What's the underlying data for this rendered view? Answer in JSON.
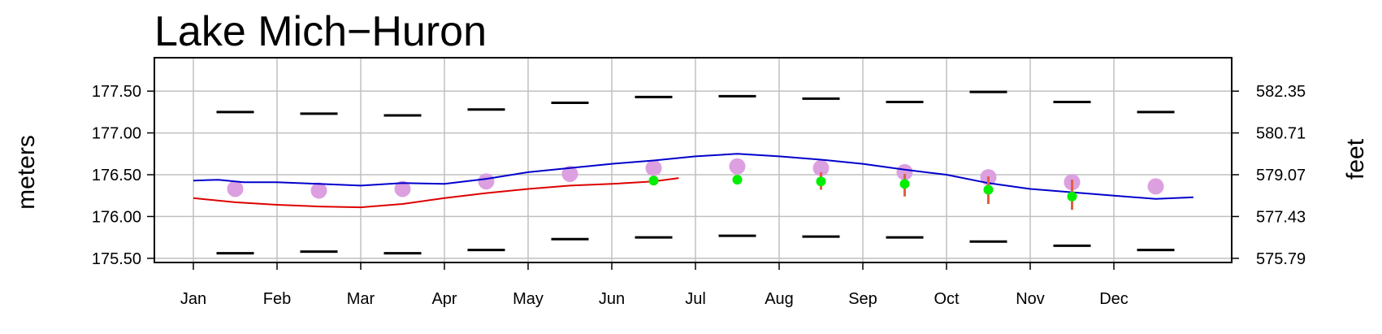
{
  "chart_data": {
    "type": "line",
    "title": "Lake Mich−Huron",
    "ylabel_left": "meters",
    "ylabel_right": "feet",
    "categories": [
      "Jan",
      "Feb",
      "Mar",
      "Apr",
      "May",
      "Jun",
      "Jul",
      "Aug",
      "Sep",
      "Oct",
      "Nov",
      "Dec"
    ],
    "ylim": [
      175.45,
      177.9
    ],
    "yticks_left": [
      {
        "value": 175.5,
        "label": "175.50"
      },
      {
        "value": 176.0,
        "label": "176.00"
      },
      {
        "value": 176.5,
        "label": "176.50"
      },
      {
        "value": 177.0,
        "label": "177.00"
      },
      {
        "value": 177.5,
        "label": "177.50"
      }
    ],
    "yticks_right": [
      {
        "value": 175.5,
        "label": "575.79"
      },
      {
        "value": 176.0,
        "label": "577.43"
      },
      {
        "value": 176.5,
        "label": "579.07"
      },
      {
        "value": 177.0,
        "label": "580.71"
      },
      {
        "value": 177.5,
        "label": "582.35"
      }
    ],
    "grid": true,
    "monthly_max": [
      177.25,
      177.23,
      177.21,
      177.28,
      177.36,
      177.43,
      177.44,
      177.41,
      177.37,
      177.49,
      177.37,
      177.25
    ],
    "monthly_min": [
      175.56,
      175.58,
      175.56,
      175.6,
      175.73,
      175.75,
      175.77,
      175.76,
      175.75,
      175.7,
      175.65,
      175.6
    ],
    "monthly_average": [
      176.33,
      176.31,
      176.33,
      176.42,
      176.51,
      176.58,
      176.6,
      176.58,
      176.53,
      176.47,
      176.41,
      176.36
    ],
    "previous_year": {
      "color": "#0000cc",
      "points": [
        [
          0,
          176.43
        ],
        [
          0.3,
          176.44
        ],
        [
          0.6,
          176.41
        ],
        [
          1,
          176.41
        ],
        [
          1.5,
          176.39
        ],
        [
          2,
          176.37
        ],
        [
          2.5,
          176.4
        ],
        [
          3,
          176.39
        ],
        [
          3.5,
          176.45
        ],
        [
          4,
          176.53
        ],
        [
          4.5,
          176.58
        ],
        [
          5,
          176.63
        ],
        [
          5.5,
          176.67
        ],
        [
          6,
          176.72
        ],
        [
          6.5,
          176.75
        ],
        [
          7,
          176.72
        ],
        [
          7.5,
          176.68
        ],
        [
          8,
          176.63
        ],
        [
          8.5,
          176.56
        ],
        [
          9,
          176.5
        ],
        [
          9.5,
          176.4
        ],
        [
          10,
          176.33
        ],
        [
          10.5,
          176.29
        ],
        [
          11,
          176.25
        ],
        [
          11.5,
          176.21
        ],
        [
          11.95,
          176.23
        ]
      ]
    },
    "current_year": {
      "color": "#dd0000",
      "points": [
        [
          0,
          176.22
        ],
        [
          0.5,
          176.17
        ],
        [
          1,
          176.14
        ],
        [
          1.5,
          176.12
        ],
        [
          2,
          176.11
        ],
        [
          2.5,
          176.15
        ],
        [
          3,
          176.22
        ],
        [
          3.5,
          176.28
        ],
        [
          4,
          176.33
        ],
        [
          4.5,
          176.37
        ],
        [
          5,
          176.39
        ],
        [
          5.5,
          176.42
        ],
        [
          5.8,
          176.46
        ]
      ]
    },
    "forecast": {
      "color": "#00ee00",
      "whisker_color": "#e06040",
      "points": [
        {
          "x": 5.5,
          "y": 176.43,
          "low": 176.43,
          "high": 176.43
        },
        {
          "x": 6.5,
          "y": 176.44,
          "low": 176.42,
          "high": 176.47
        },
        {
          "x": 7.5,
          "y": 176.42,
          "low": 176.32,
          "high": 176.53
        },
        {
          "x": 8.5,
          "y": 176.39,
          "low": 176.24,
          "high": 176.51
        },
        {
          "x": 9.5,
          "y": 176.32,
          "low": 176.15,
          "high": 176.48
        },
        {
          "x": 10.5,
          "y": 176.24,
          "low": 176.08,
          "high": 176.44
        }
      ]
    },
    "colors": {
      "average": "#dca0e0",
      "grid": "#c0c0c0",
      "extremes": "#000000"
    }
  }
}
